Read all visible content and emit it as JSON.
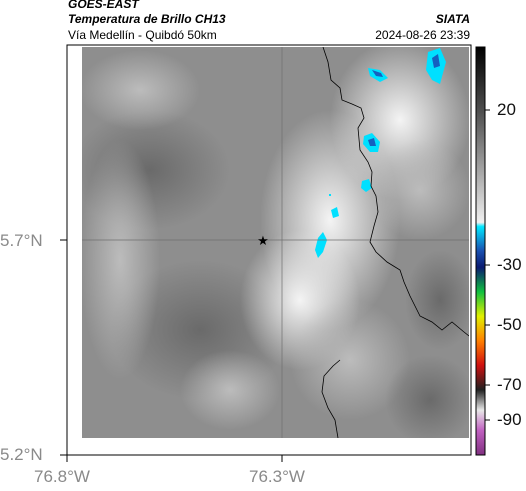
{
  "header": {
    "satellite": "GOES-EAST",
    "product": "Temperatura de Brillo CH13",
    "subtitle": "Vía Medellín - Quibdó 50km",
    "institution": "SIATA",
    "datetime": "2024-08-26 23:39"
  },
  "axes": {
    "x_ticks": [
      "76.8°W",
      "76.3°W"
    ],
    "y_ticks": [
      "5.7°N",
      "5.2°N"
    ]
  },
  "colorbar": {
    "ticks": [
      "20",
      "-30",
      "-50",
      "-70",
      "-90"
    ]
  },
  "map": {
    "marker": "star-marker",
    "colors": {
      "cloud_gray": "#8c8c8c",
      "cold_cyan": "#00e5ff",
      "cold_blue": "#1560c0",
      "border": "#000000"
    }
  }
}
